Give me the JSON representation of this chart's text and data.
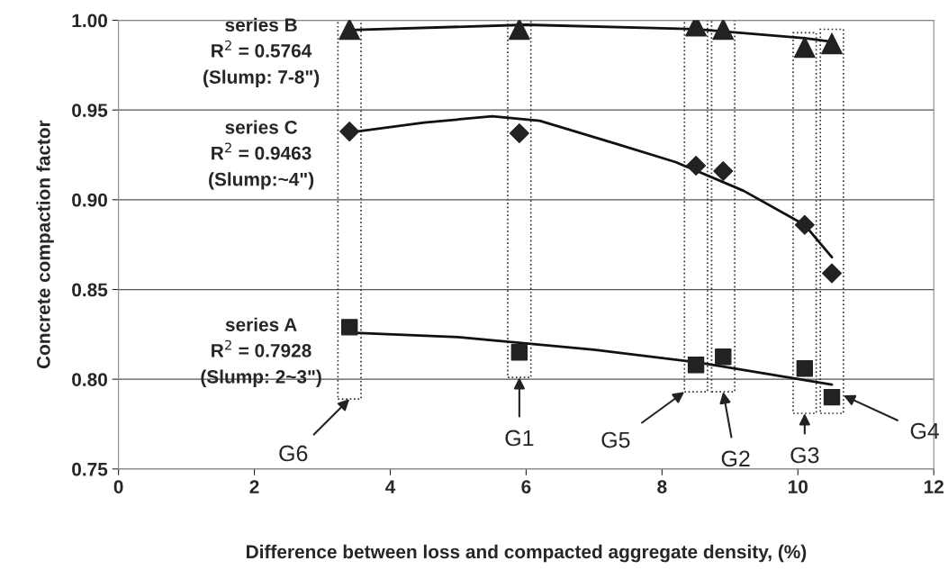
{
  "chart_data": {
    "type": "scatter",
    "xlabel": "Difference between loss and compacted aggregate density, (%)",
    "ylabel": "Concrete compaction factor",
    "x": [
      3.4,
      5.9,
      8.5,
      8.9,
      10.1,
      10.5
    ],
    "series": [
      {
        "name": "series A",
        "color": "#222222",
        "marker": "square",
        "values": [
          0.829,
          0.815,
          0.808,
          0.8125,
          0.806,
          0.79
        ]
      },
      {
        "name": "series B",
        "color": "#222222",
        "marker": "triangle",
        "values": [
          0.995,
          0.995,
          0.997,
          0.995,
          0.985,
          0.987
        ]
      },
      {
        "name": "series C",
        "color": "#222222",
        "marker": "diamond",
        "values": [
          0.938,
          0.937,
          0.919,
          0.916,
          0.886,
          0.859
        ]
      },
      {
        "type": "line",
        "color": "#111111",
        "x": [
          3.4,
          5,
          6,
          7,
          8.5,
          10.1,
          10.5
        ],
        "values": [
          0.826,
          0.8235,
          0.82,
          0.8165,
          0.8095,
          0.7995,
          0.797
        ]
      },
      {
        "type": "line",
        "color": "#111111",
        "x": [
          3.4,
          6,
          8.5,
          10.1,
          10.5
        ],
        "values": [
          0.9945,
          0.9975,
          0.995,
          0.99,
          0.988
        ]
      },
      {
        "type": "line",
        "color": "#111111",
        "x": [
          3.4,
          4.5,
          5.5,
          6.2,
          7.3,
          8.2,
          9.2,
          10.1,
          10.5
        ],
        "values": [
          0.9375,
          0.943,
          0.9465,
          0.944,
          0.9315,
          0.921,
          0.905,
          0.886,
          0.868
        ]
      }
    ],
    "annotations": [
      "R$^{2}$ = 0.7928",
      "(Slump: 2~3\")",
      "R$^{2}$ = 0.5764",
      "(Slump: 7-8\")",
      "R$^{2}$ = 0.9463",
      "(Slump:~4\")",
      "G6",
      "G1",
      "G5",
      "G2",
      "G3",
      "G4"
    ],
    "xlim": [
      0,
      12
    ],
    "xticks": [
      0,
      2,
      4,
      6,
      8,
      10,
      12
    ],
    "ylim": [
      0.75,
      1.0
    ],
    "yticks": [
      {
        "value": 0.75,
        "label": "0.75"
      },
      {
        "value": 0.8,
        "label": "0.80"
      },
      {
        "value": 0.85,
        "label": "0.85"
      },
      {
        "value": 0.9,
        "label": "0.90"
      },
      {
        "value": 0.95,
        "label": "0.95"
      },
      {
        "value": 1.0,
        "label": "1.00"
      }
    ],
    "grid": "y",
    "legend": false
  }
}
